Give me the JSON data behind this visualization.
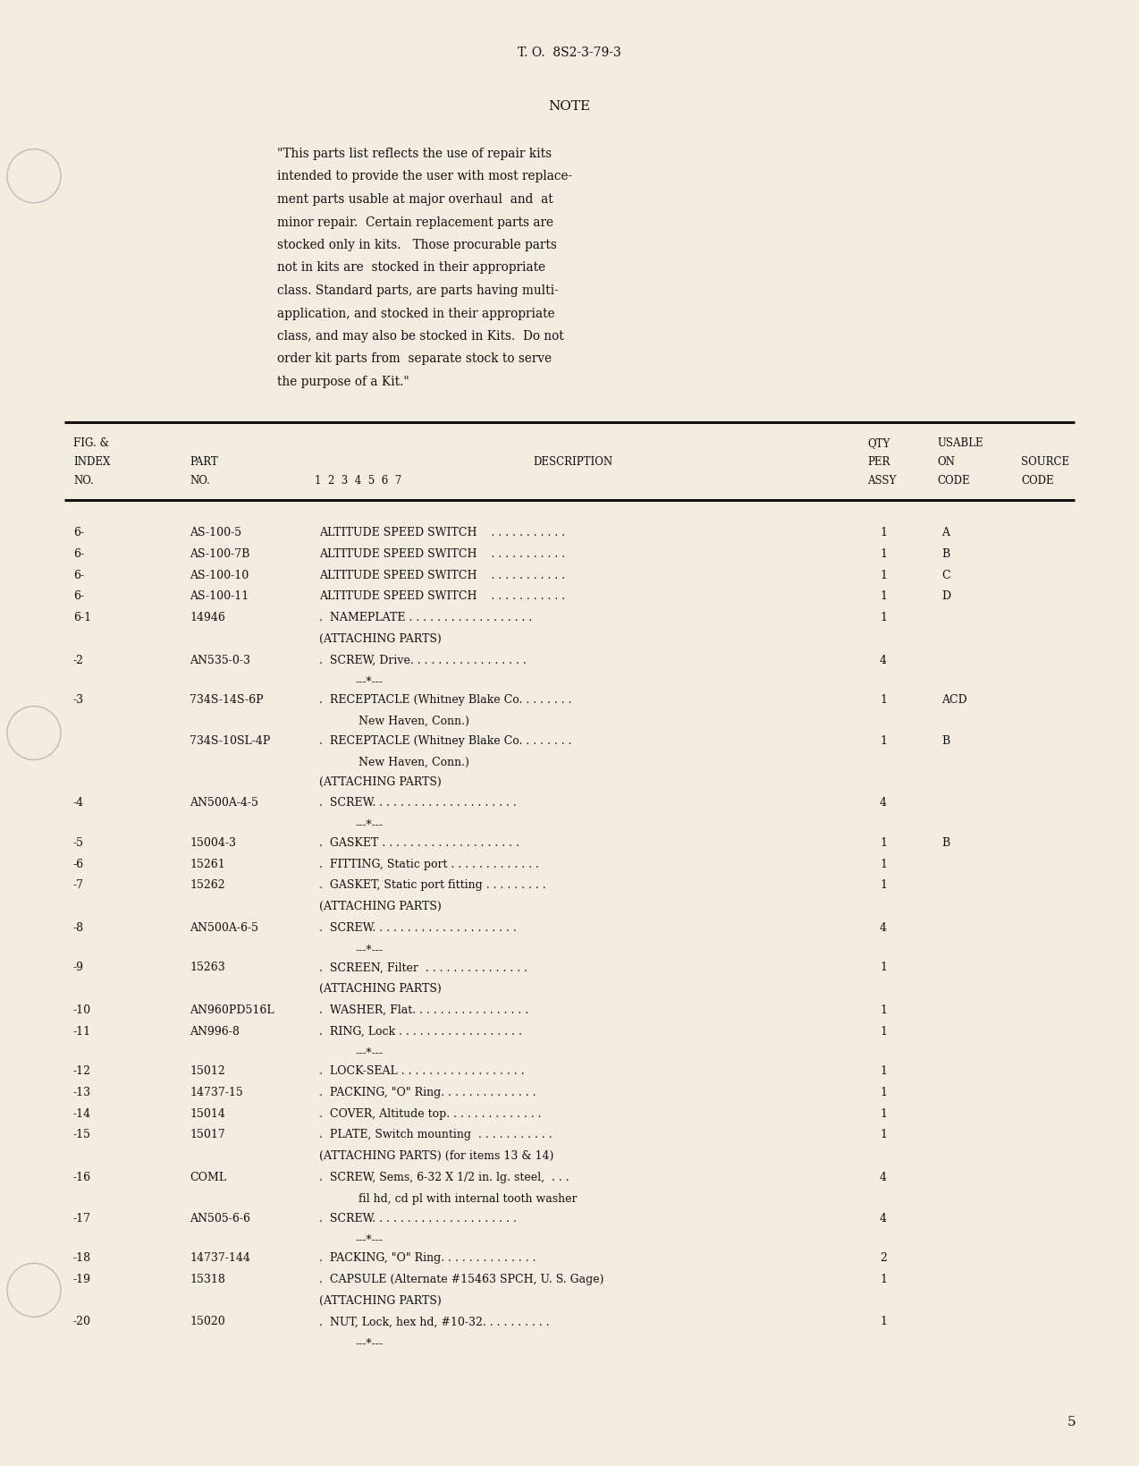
{
  "page_number": "5",
  "doc_number": "T. O.  8S2-3-79-3",
  "note_title": "NOTE",
  "note_lines": [
    "\"This parts list reflects the use of repair kits",
    "intended to provide the user with most replace-",
    "ment parts usable at major overhaul  and  at",
    "minor repair.  Certain replacement parts are",
    "stocked only in kits.   Those procurable parts",
    "not in kits are  stocked in their appropriate",
    "class. Standard parts, are parts having multi-",
    "application, and stocked in their appropriate",
    "class, and may also be stocked in Kits.  Do not",
    "order kit parts from  separate stock to serve",
    "the purpose of a Kit.\""
  ],
  "rows": [
    {
      "fig": "6-",
      "part": "AS-100-5",
      "desc": "ALTITUDE SPEED SWITCH    . . . . . . . . . . .",
      "qty": "1",
      "usable": "A",
      "type": "data"
    },
    {
      "fig": "6-",
      "part": "AS-100-7B",
      "desc": "ALTITUDE SPEED SWITCH    . . . . . . . . . . .",
      "qty": "1",
      "usable": "B",
      "type": "data"
    },
    {
      "fig": "6-",
      "part": "AS-100-10",
      "desc": "ALTITUDE SPEED SWITCH    . . . . . . . . . . .",
      "qty": "1",
      "usable": "C",
      "type": "data"
    },
    {
      "fig": "6-",
      "part": "AS-100-11",
      "desc": "ALTITUDE SPEED SWITCH    . . . . . . . . . . .",
      "qty": "1",
      "usable": "D",
      "type": "data"
    },
    {
      "fig": "6-1",
      "part": "14946",
      "desc": ".  NAMEPLATE . . . . . . . . . . . . . . . . . .",
      "qty": "1",
      "usable": "",
      "type": "data"
    },
    {
      "fig": "",
      "part": "",
      "desc": "(ATTACHING PARTS)",
      "qty": "",
      "usable": "",
      "type": "section"
    },
    {
      "fig": "-2",
      "part": "AN535-0-3",
      "desc": ".  SCREW, Drive. . . . . . . . . . . . . . . . .",
      "qty": "4",
      "usable": "",
      "type": "data"
    },
    {
      "fig": "",
      "part": "",
      "desc": "---*---",
      "qty": "",
      "usable": "",
      "type": "separator"
    },
    {
      "fig": "-3",
      "part": "734S-14S-6P",
      "desc": ".  RECEPTACLE (Whitney Blake Co. . . . . . . .",
      "qty": "1",
      "usable": "ACD",
      "type": "data"
    },
    {
      "fig": "",
      "part": "",
      "desc": "           New Haven, Conn.)",
      "qty": "",
      "usable": "",
      "type": "continuation"
    },
    {
      "fig": "",
      "part": "734S-10SL-4P",
      "desc": ".  RECEPTACLE (Whitney Blake Co. . . . . . . .",
      "qty": "1",
      "usable": "B",
      "type": "data"
    },
    {
      "fig": "",
      "part": "",
      "desc": "           New Haven, Conn.)",
      "qty": "",
      "usable": "",
      "type": "continuation"
    },
    {
      "fig": "",
      "part": "",
      "desc": "(ATTACHING PARTS)",
      "qty": "",
      "usable": "",
      "type": "section"
    },
    {
      "fig": "-4",
      "part": "AN500A-4-5",
      "desc": ".  SCREW. . . . . . . . . . . . . . . . . . . . .",
      "qty": "4",
      "usable": "",
      "type": "data"
    },
    {
      "fig": "",
      "part": "",
      "desc": "---*---",
      "qty": "",
      "usable": "",
      "type": "separator"
    },
    {
      "fig": "-5",
      "part": "15004-3",
      "desc": ".  GASKET . . . . . . . . . . . . . . . . . . . .",
      "qty": "1",
      "usable": "B",
      "type": "data"
    },
    {
      "fig": "-6",
      "part": "15261",
      "desc": ".  FITTING, Static port . . . . . . . . . . . . .",
      "qty": "1",
      "usable": "",
      "type": "data"
    },
    {
      "fig": "-7",
      "part": "15262",
      "desc": ".  GASKET, Static port fitting . . . . . . . . .",
      "qty": "1",
      "usable": "",
      "type": "data"
    },
    {
      "fig": "",
      "part": "",
      "desc": "(ATTACHING PARTS)",
      "qty": "",
      "usable": "",
      "type": "section"
    },
    {
      "fig": "-8",
      "part": "AN500A-6-5",
      "desc": ".  SCREW. . . . . . . . . . . . . . . . . . . . .",
      "qty": "4",
      "usable": "",
      "type": "data"
    },
    {
      "fig": "",
      "part": "",
      "desc": "---*---",
      "qty": "",
      "usable": "",
      "type": "separator"
    },
    {
      "fig": "-9",
      "part": "15263",
      "desc": ".  SCREEN, Filter  . . . . . . . . . . . . . . .",
      "qty": "1",
      "usable": "",
      "type": "data"
    },
    {
      "fig": "",
      "part": "",
      "desc": "(ATTACHING PARTS)",
      "qty": "",
      "usable": "",
      "type": "section"
    },
    {
      "fig": "-10",
      "part": "AN960PD516L",
      "desc": ".  WASHER, Flat. . . . . . . . . . . . . . . . .",
      "qty": "1",
      "usable": "",
      "type": "data"
    },
    {
      "fig": "-11",
      "part": "AN996-8",
      "desc": ".  RING, Lock . . . . . . . . . . . . . . . . . .",
      "qty": "1",
      "usable": "",
      "type": "data"
    },
    {
      "fig": "",
      "part": "",
      "desc": "---*---",
      "qty": "",
      "usable": "",
      "type": "separator"
    },
    {
      "fig": "-12",
      "part": "15012",
      "desc": ".  LOCK-SEAL . . . . . . . . . . . . . . . . . .",
      "qty": "1",
      "usable": "",
      "type": "data"
    },
    {
      "fig": "-13",
      "part": "14737-15",
      "desc": ".  PACKING, \"O\" Ring. . . . . . . . . . . . . .",
      "qty": "1",
      "usable": "",
      "type": "data"
    },
    {
      "fig": "-14",
      "part": "15014",
      "desc": ".  COVER, Altitude top. . . . . . . . . . . . . .",
      "qty": "1",
      "usable": "",
      "type": "data"
    },
    {
      "fig": "-15",
      "part": "15017",
      "desc": ".  PLATE, Switch mounting  . . . . . . . . . . .",
      "qty": "1",
      "usable": "",
      "type": "data"
    },
    {
      "fig": "",
      "part": "",
      "desc": "(ATTACHING PARTS) (for items 13 & 14)",
      "qty": "",
      "usable": "",
      "type": "section"
    },
    {
      "fig": "-16",
      "part": "COML",
      "desc": ".  SCREW, Sems, 6-32 X 1/2 in. lg. steel,  . . .",
      "qty": "4",
      "usable": "",
      "type": "data"
    },
    {
      "fig": "",
      "part": "",
      "desc": "           fil hd, cd pl with internal tooth washer",
      "qty": "",
      "usable": "",
      "type": "continuation"
    },
    {
      "fig": "-17",
      "part": "AN505-6-6",
      "desc": ".  SCREW. . . . . . . . . . . . . . . . . . . . .",
      "qty": "4",
      "usable": "",
      "type": "data"
    },
    {
      "fig": "",
      "part": "",
      "desc": "---*---",
      "qty": "",
      "usable": "",
      "type": "separator"
    },
    {
      "fig": "-18",
      "part": "14737-144",
      "desc": ".  PACKING, \"O\" Ring. . . . . . . . . . . . . .",
      "qty": "2",
      "usable": "",
      "type": "data"
    },
    {
      "fig": "-19",
      "part": "15318",
      "desc": ".  CAPSULE (Alternate #15463 SPCH, U. S. Gage)",
      "qty": "1",
      "usable": "",
      "type": "data"
    },
    {
      "fig": "",
      "part": "",
      "desc": "(ATTACHING PARTS)",
      "qty": "",
      "usable": "",
      "type": "section"
    },
    {
      "fig": "-20",
      "part": "15020",
      "desc": ".  NUT, Lock, hex hd, #10-32. . . . . . . . . .",
      "qty": "1",
      "usable": "",
      "type": "data"
    },
    {
      "fig": "",
      "part": "",
      "desc": "---*---",
      "qty": "",
      "usable": "",
      "type": "separator"
    }
  ],
  "bg_color": "#f2ede0",
  "text_color": "#111111",
  "font_family": "DejaVu Serif"
}
